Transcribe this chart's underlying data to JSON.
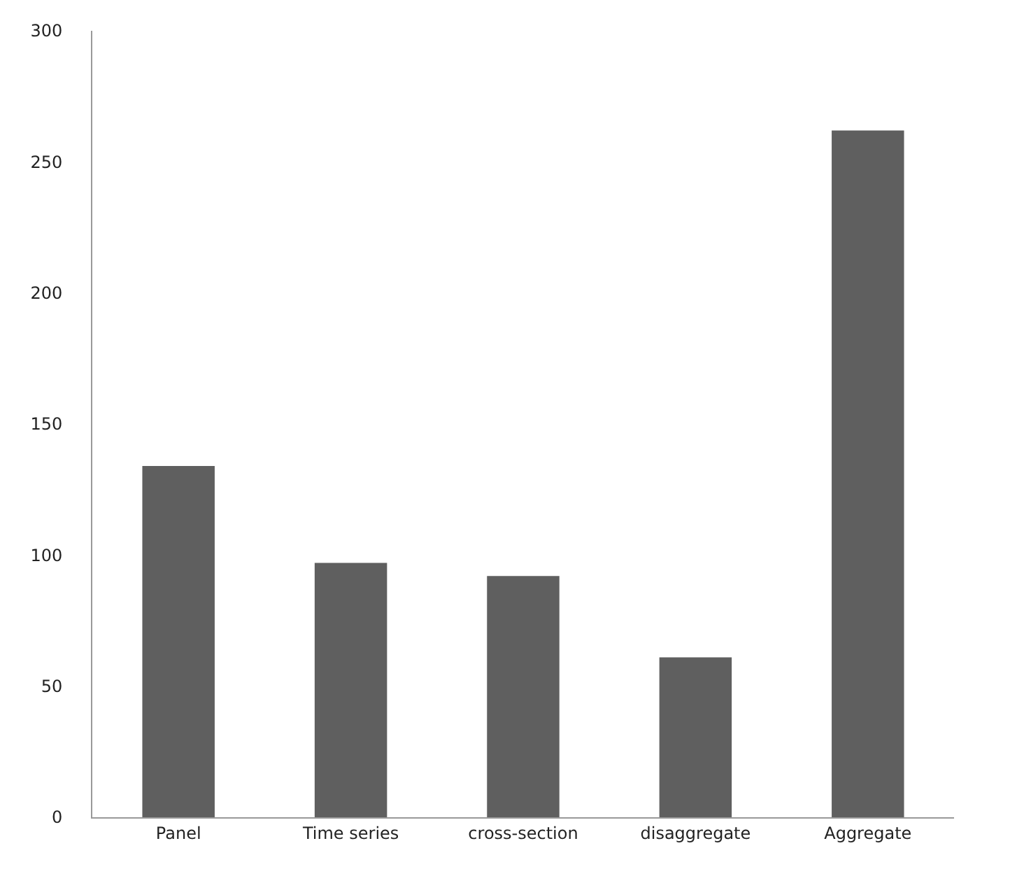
{
  "chart_data": {
    "type": "bar",
    "categories": [
      "Panel",
      "Time series",
      "cross-section",
      "disaggregate",
      "Aggregate"
    ],
    "values": [
      134,
      97,
      92,
      61,
      262
    ],
    "color": "#5f5f5f",
    "ylim": [
      0,
      300
    ],
    "yticks": [
      0,
      50,
      100,
      150,
      200,
      250,
      300
    ]
  }
}
